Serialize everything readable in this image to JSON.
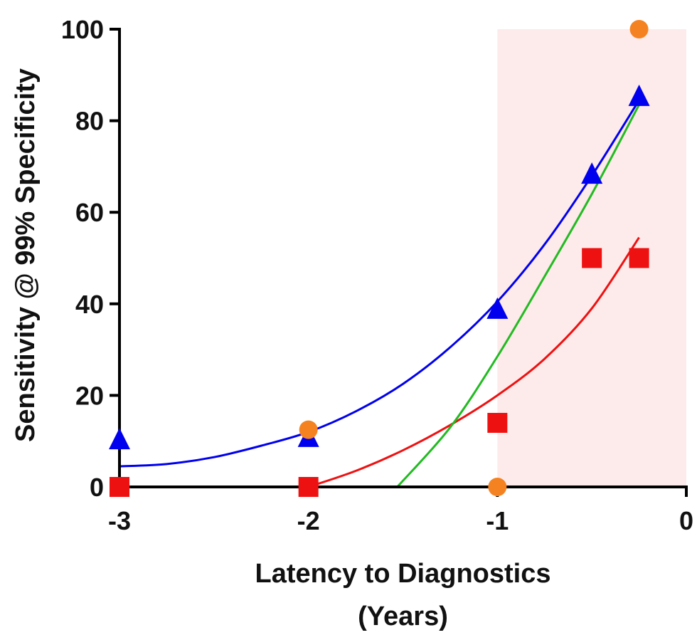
{
  "chart_data": {
    "type": "scatter",
    "title": "",
    "xlabel_line1": "Latency to Diagnostics",
    "xlabel_line2": "(Years)",
    "ylabel": "Sensitivity @ 99% Specificity",
    "xlim": [
      -3,
      0
    ],
    "ylim": [
      0,
      100
    ],
    "x_ticks": [
      -3,
      -2,
      -1,
      0
    ],
    "y_ticks": [
      0,
      20,
      40,
      60,
      80,
      100
    ],
    "shaded_region": {
      "x_from": -1,
      "x_to": 0,
      "color": "#fdeaea"
    },
    "grid": false,
    "legend": "none",
    "series": [
      {
        "marker": "triangle",
        "color": "#0000ee",
        "points": [
          [
            -3,
            10
          ],
          [
            -2,
            10.5
          ],
          [
            -1,
            38.5
          ],
          [
            -0.5,
            68
          ],
          [
            -0.25,
            85
          ]
        ],
        "fit_curve": [
          [
            -3,
            4.5
          ],
          [
            -2.75,
            5
          ],
          [
            -2.5,
            6.5
          ],
          [
            -2.25,
            9
          ],
          [
            -2,
            12
          ],
          [
            -1.75,
            16.5
          ],
          [
            -1.5,
            22.5
          ],
          [
            -1.25,
            30.5
          ],
          [
            -1,
            40.5
          ],
          [
            -0.75,
            53
          ],
          [
            -0.5,
            68
          ],
          [
            -0.25,
            84.5
          ]
        ]
      },
      {
        "marker": "square",
        "color": "#ee1111",
        "points": [
          [
            -3,
            0
          ],
          [
            -2,
            0
          ],
          [
            -1,
            14
          ],
          [
            -0.5,
            50
          ],
          [
            -0.25,
            50
          ]
        ],
        "fit_curve": [
          [
            -2,
            0
          ],
          [
            -1.75,
            3.5
          ],
          [
            -1.5,
            8
          ],
          [
            -1.25,
            13.5
          ],
          [
            -1,
            20
          ],
          [
            -0.75,
            28
          ],
          [
            -0.5,
            39
          ],
          [
            -0.25,
            54.5
          ]
        ]
      },
      {
        "marker": "circle",
        "color": "#f58220",
        "points": [
          [
            -2,
            12.5
          ],
          [
            -1,
            0
          ],
          [
            -0.25,
            100
          ]
        ],
        "fit_curve": [
          [
            -1.53,
            0
          ],
          [
            -1.25,
            13
          ],
          [
            -1,
            28.5
          ],
          [
            -0.75,
            46
          ],
          [
            -0.5,
            64
          ],
          [
            -0.25,
            83.5
          ]
        ],
        "fit_color": "#22bb22"
      }
    ]
  }
}
